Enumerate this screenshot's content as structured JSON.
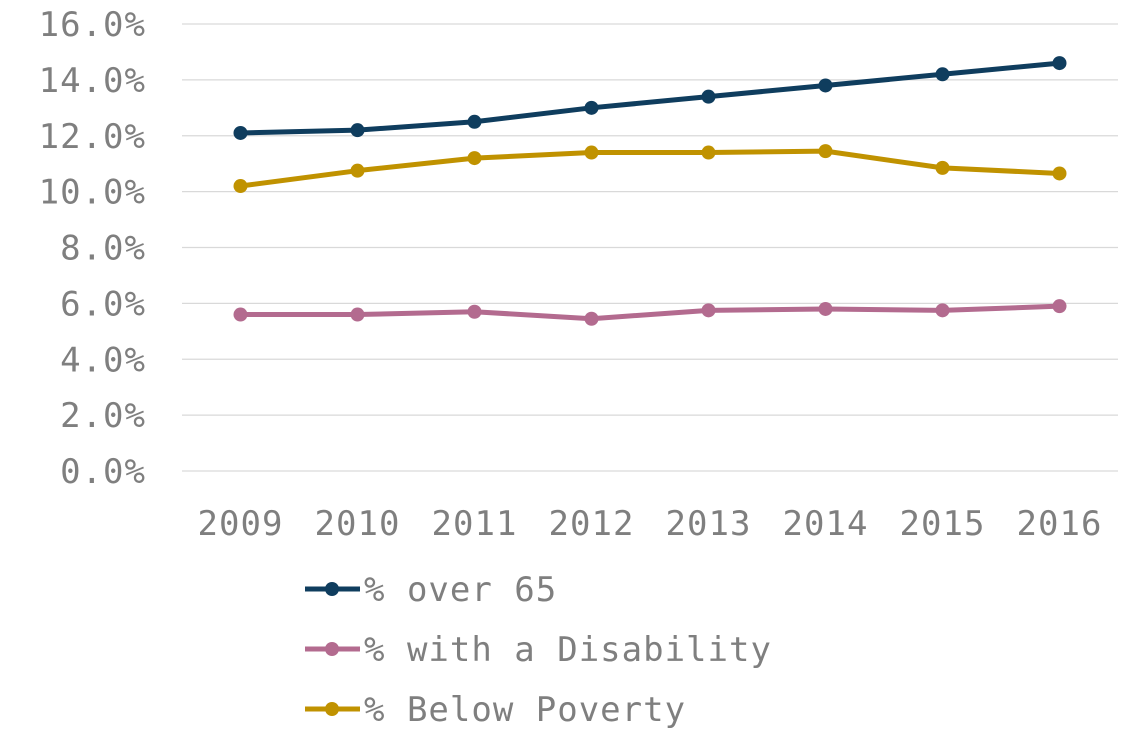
{
  "chart_data": {
    "type": "line",
    "title": "",
    "xlabel": "",
    "ylabel": "",
    "categories": [
      "2009",
      "2010",
      "2011",
      "2012",
      "2013",
      "2014",
      "2015",
      "2016"
    ],
    "ylim": [
      0,
      16
    ],
    "y_ticks": [
      {
        "value": 0,
        "label": "0.0%"
      },
      {
        "value": 2,
        "label": "2.0%"
      },
      {
        "value": 4,
        "label": "4.0%"
      },
      {
        "value": 6,
        "label": "6.0%"
      },
      {
        "value": 8,
        "label": "8.0%"
      },
      {
        "value": 10,
        "label": "10.0%"
      },
      {
        "value": 12,
        "label": "12.0%"
      },
      {
        "value": 14,
        "label": "14.0%"
      },
      {
        "value": 16,
        "label": "16.0%"
      }
    ],
    "grid": true,
    "legend_position": "bottom",
    "series": [
      {
        "name": "% over 65",
        "color": "#0f3d5e",
        "values": [
          12.1,
          12.2,
          12.5,
          13.0,
          13.4,
          13.8,
          14.2,
          14.6
        ]
      },
      {
        "name": "% with a Disability",
        "color": "#b36b8f",
        "values": [
          5.6,
          5.6,
          5.7,
          5.45,
          5.75,
          5.8,
          5.75,
          5.9
        ]
      },
      {
        "name": "% Below Poverty",
        "color": "#c09200",
        "values": [
          10.2,
          10.75,
          11.2,
          11.4,
          11.4,
          11.45,
          10.85,
          10.65
        ]
      }
    ]
  }
}
